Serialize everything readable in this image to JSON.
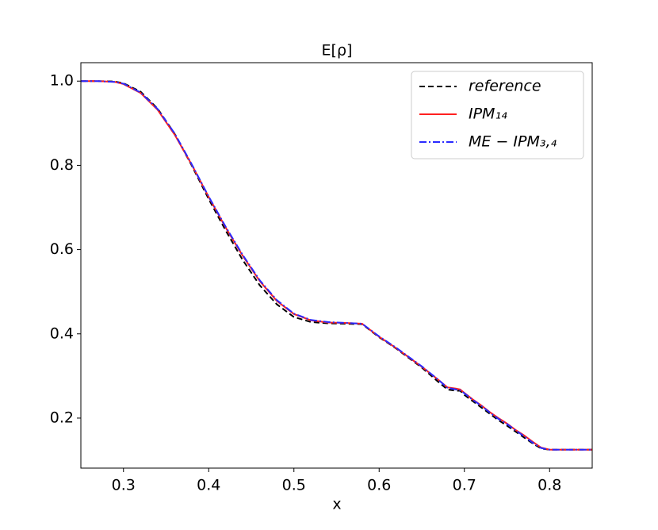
{
  "chart_data": {
    "type": "line",
    "title": "E[ρ]",
    "x_label": "x",
    "x": [
      0.25,
      0.27,
      0.29,
      0.3,
      0.32,
      0.34,
      0.36,
      0.38,
      0.4,
      0.42,
      0.44,
      0.46,
      0.48,
      0.5,
      0.52,
      0.54,
      0.56,
      0.58,
      0.6,
      0.62,
      0.65,
      0.67,
      0.68,
      0.69,
      0.695,
      0.7,
      0.71,
      0.72,
      0.73,
      0.74,
      0.75,
      0.76,
      0.77,
      0.78,
      0.79,
      0.8,
      0.82,
      0.85
    ],
    "series": [
      {
        "name": "reference",
        "color": "#000000",
        "dash": "dashed",
        "values": [
          1.0,
          1.0,
          0.999,
          0.995,
          0.975,
          0.935,
          0.875,
          0.8,
          0.72,
          0.645,
          0.575,
          0.515,
          0.47,
          0.44,
          0.428,
          0.425,
          0.424,
          0.423,
          0.392,
          0.365,
          0.32,
          0.285,
          0.268,
          0.265,
          0.265,
          0.255,
          0.24,
          0.225,
          0.21,
          0.195,
          0.182,
          0.168,
          0.154,
          0.14,
          0.128,
          0.125,
          0.125,
          0.125
        ]
      },
      {
        "name": "IPM₁₄",
        "color": "#ff2020",
        "dash": "solid",
        "values": [
          1.0,
          1.0,
          0.998,
          0.993,
          0.972,
          0.932,
          0.873,
          0.802,
          0.725,
          0.652,
          0.585,
          0.525,
          0.478,
          0.447,
          0.432,
          0.427,
          0.426,
          0.424,
          0.393,
          0.366,
          0.322,
          0.29,
          0.273,
          0.27,
          0.268,
          0.26,
          0.244,
          0.23,
          0.214,
          0.2,
          0.187,
          0.172,
          0.159,
          0.144,
          0.13,
          0.125,
          0.125,
          0.125
        ]
      },
      {
        "name": "ME − IPM₃,₄",
        "color": "#2a2aff",
        "dash": "dashdot",
        "values": [
          1.0,
          1.0,
          0.998,
          0.994,
          0.973,
          0.934,
          0.876,
          0.803,
          0.726,
          0.654,
          0.587,
          0.527,
          0.48,
          0.448,
          0.433,
          0.428,
          0.426,
          0.424,
          0.394,
          0.367,
          0.323,
          0.29,
          0.272,
          0.268,
          0.266,
          0.259,
          0.243,
          0.229,
          0.213,
          0.198,
          0.186,
          0.171,
          0.157,
          0.142,
          0.129,
          0.125,
          0.125,
          0.125
        ]
      }
    ],
    "xlim": [
      0.25,
      0.85
    ],
    "ylim": [
      0.08125,
      1.04375
    ],
    "xticks": [
      0.3,
      0.4,
      0.5,
      0.6,
      0.7,
      0.8
    ],
    "yticks": [
      0.2,
      0.4,
      0.6,
      0.8,
      {
        "value": 1.0,
        "label": "1.0"
      }
    ],
    "legend": "upper right"
  }
}
